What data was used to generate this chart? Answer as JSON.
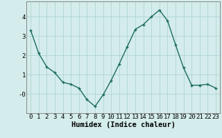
{
  "x": [
    0,
    1,
    2,
    3,
    4,
    5,
    6,
    7,
    8,
    9,
    10,
    11,
    12,
    13,
    14,
    15,
    16,
    17,
    18,
    19,
    20,
    21,
    22,
    23
  ],
  "y": [
    3.3,
    2.1,
    1.4,
    1.1,
    0.6,
    0.5,
    0.3,
    -0.3,
    -0.65,
    -0.05,
    0.7,
    1.55,
    2.45,
    3.35,
    3.6,
    4.0,
    4.35,
    3.8,
    2.55,
    1.35,
    0.45,
    0.45,
    0.5,
    0.3
  ],
  "line_color": "#1a6b5a",
  "marker": "+",
  "marker_size": 3.5,
  "marker_lw": 1.0,
  "line_width": 1.0,
  "bg_color": "#d4ecec",
  "grid_color": "#b0d4d4",
  "xlabel": "Humidex (Indice chaleur)",
  "xlabel_fontsize": 7.5,
  "tick_fontsize": 6.5,
  "ylim": [
    -1.0,
    4.8
  ],
  "xlim": [
    -0.5,
    23.5
  ]
}
